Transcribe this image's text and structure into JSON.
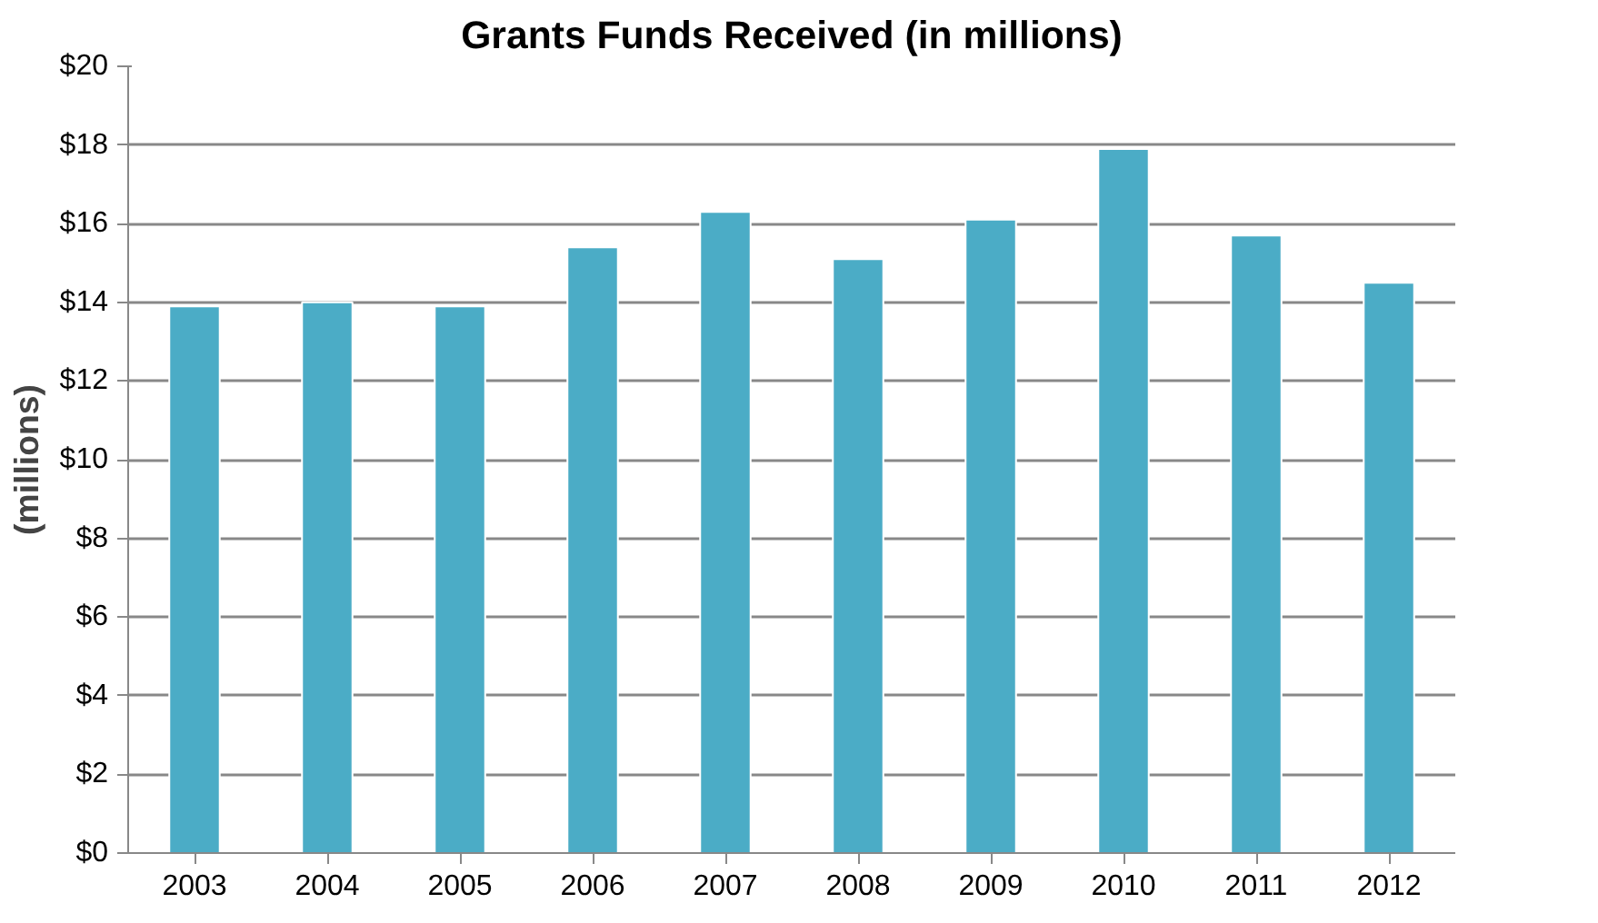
{
  "chart_data": {
    "type": "bar",
    "title": "Grants Funds Received (in millions)",
    "ylabel": "(millions)",
    "categories": [
      "2003",
      "2004",
      "2005",
      "2006",
      "2007",
      "2008",
      "2009",
      "2010",
      "2011",
      "2012"
    ],
    "values": [
      13.9,
      14.0,
      13.9,
      15.4,
      16.3,
      15.1,
      16.1,
      17.9,
      15.7,
      14.5
    ],
    "color": "#4bacc6",
    "ylim": [
      0,
      20
    ],
    "yticks": [
      {
        "value": 0,
        "label": "$0"
      },
      {
        "value": 2,
        "label": "$2"
      },
      {
        "value": 4,
        "label": "$4"
      },
      {
        "value": 6,
        "label": "$6"
      },
      {
        "value": 8,
        "label": "$8"
      },
      {
        "value": 10,
        "label": "$10"
      },
      {
        "value": 12,
        "label": "$12"
      },
      {
        "value": 14,
        "label": "$14"
      },
      {
        "value": 16,
        "label": "$16"
      },
      {
        "value": 18,
        "label": "$18"
      },
      {
        "value": 20,
        "label": "$20"
      }
    ],
    "grid": "y"
  }
}
